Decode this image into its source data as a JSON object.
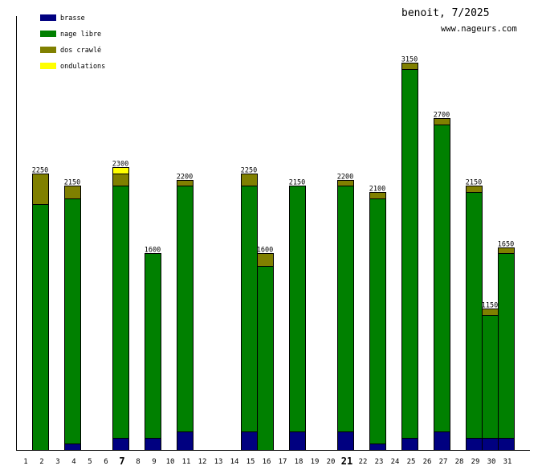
{
  "chart_data": {
    "type": "bar",
    "stacked": true,
    "title": "benoit, 7/2025",
    "subtitle": "www.nageurs.com",
    "xlabel": "",
    "ylabel": "",
    "ylim": [
      0,
      3150
    ],
    "grid": false,
    "legend_position": "top-left",
    "categories": [
      "1",
      "2",
      "3",
      "4",
      "5",
      "6",
      "7",
      "8",
      "9",
      "10",
      "11",
      "12",
      "13",
      "14",
      "15",
      "16",
      "17",
      "18",
      "19",
      "20",
      "21",
      "22",
      "23",
      "24",
      "25",
      "26",
      "27",
      "28",
      "29",
      "30",
      "31"
    ],
    "bold_categories": [
      "7",
      "21"
    ],
    "series": [
      {
        "name": "brasse",
        "color": "#000080",
        "values": [
          0,
          0,
          0,
          50,
          0,
          0,
          100,
          0,
          100,
          0,
          150,
          0,
          0,
          0,
          150,
          0,
          0,
          150,
          0,
          0,
          150,
          0,
          50,
          0,
          100,
          0,
          150,
          0,
          100,
          100,
          100
        ]
      },
      {
        "name": "nage libre",
        "color": "#008000",
        "values": [
          0,
          2000,
          0,
          2000,
          0,
          0,
          2050,
          0,
          1500,
          0,
          2000,
          0,
          0,
          0,
          2000,
          1500,
          0,
          2000,
          0,
          0,
          2000,
          0,
          2000,
          0,
          3000,
          0,
          2500,
          0,
          2000,
          1000,
          1500
        ]
      },
      {
        "name": "dos crawlé",
        "color": "#808000",
        "values": [
          0,
          250,
          0,
          100,
          0,
          0,
          100,
          0,
          0,
          0,
          50,
          0,
          0,
          0,
          100,
          100,
          0,
          0,
          0,
          0,
          50,
          0,
          50,
          0,
          50,
          0,
          50,
          0,
          50,
          50,
          50
        ]
      },
      {
        "name": "ondulations",
        "color": "#FFFF00",
        "values": [
          0,
          0,
          0,
          0,
          0,
          0,
          50,
          0,
          0,
          0,
          0,
          0,
          0,
          0,
          0,
          0,
          0,
          0,
          0,
          0,
          0,
          0,
          0,
          0,
          0,
          0,
          0,
          0,
          0,
          0,
          0
        ]
      }
    ],
    "totals": [
      0,
      2250,
      0,
      2150,
      0,
      0,
      2300,
      0,
      1600,
      0,
      2200,
      0,
      0,
      0,
      2250,
      1600,
      0,
      2150,
      0,
      0,
      2200,
      0,
      2100,
      0,
      3150,
      0,
      2700,
      0,
      2150,
      1150,
      1650
    ]
  }
}
